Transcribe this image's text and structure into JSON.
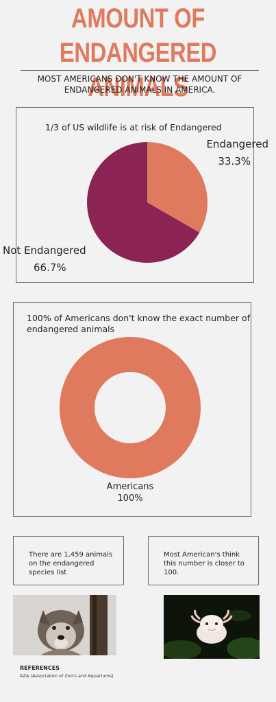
{
  "header": {
    "title_line1": "AMOUNT OF ENDANGERED",
    "title_line2": "ANIMALS",
    "subtitle_line1": "MOST AMERICANS DON'T KNOW THE AMOUNT OF",
    "subtitle_line2": "ENDANGERED ANIMALS IN AMERICA."
  },
  "chart1": {
    "caption": "1/3 of US wildlife is at risk of Endangered",
    "label_endangered": "Endangered",
    "value_endangered": "33.3%",
    "label_not": "Not Endangered",
    "value_not": "66.7%"
  },
  "chart2": {
    "caption_line1": "100% of Americans don't know the exact number of",
    "caption_line2": "endangered animals",
    "label": "Americans",
    "value": "100%"
  },
  "boxes": {
    "left_line1": "There are 1,459 animals",
    "left_line2": "on the endangered",
    "left_line3": "species list",
    "right_line1": "Most American's think",
    "right_line2": "this number is closer to",
    "right_line3": "100."
  },
  "references": {
    "title": "REFERENCES",
    "text": "AZA (Association of Zoo's and Aquariums)"
  },
  "colors": {
    "accent": "#e07a5f",
    "not_endangered": "#8b2455"
  },
  "chart_data": [
    {
      "type": "pie",
      "title": "1/3 of US wildlife is at risk of Endangered",
      "categories": [
        "Endangered",
        "Not Endangered"
      ],
      "values": [
        33.3,
        66.7
      ],
      "colors": [
        "#e07a5f",
        "#8b2455"
      ]
    },
    {
      "type": "pie",
      "title": "100% of Americans don't know the exact number of endangered animals",
      "categories": [
        "Americans"
      ],
      "values": [
        100
      ],
      "colors": [
        "#e07a5f"
      ]
    }
  ]
}
